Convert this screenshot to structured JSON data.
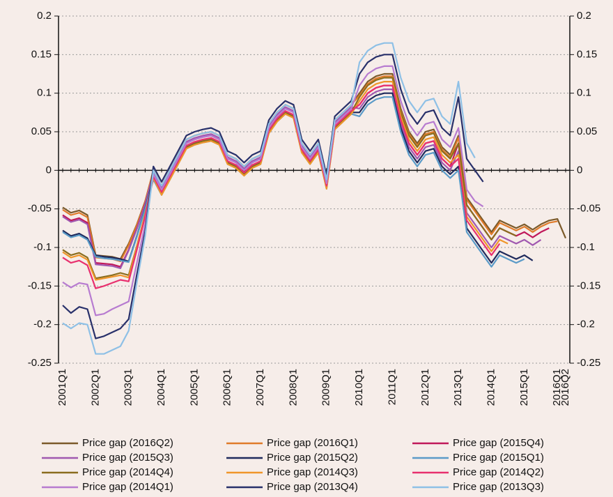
{
  "chart_data": {
    "type": "line",
    "categories": [
      "2001Q1",
      null,
      null,
      null,
      "2002Q1",
      null,
      null,
      null,
      "2003Q1",
      null,
      null,
      null,
      "2004Q1",
      null,
      null,
      null,
      "2005Q1",
      null,
      null,
      null,
      "2006Q1",
      null,
      null,
      null,
      "2007Q1",
      null,
      null,
      null,
      "2008Q1",
      null,
      null,
      null,
      "2009Q1",
      null,
      null,
      null,
      "2010Q1",
      null,
      null,
      null,
      "2011Q1",
      null,
      null,
      null,
      "2012Q1",
      null,
      null,
      null,
      "2013Q1",
      null,
      null,
      null,
      "2014Q1",
      null,
      null,
      null,
      "2015Q1",
      null,
      null,
      null,
      "2016Q1",
      "2016Q2"
    ],
    "ylim": [
      -0.25,
      0.2
    ],
    "yticks": [
      -0.25,
      -0.2,
      -0.15,
      -0.1,
      -0.05,
      0,
      0.05,
      0.1,
      0.15,
      0.2
    ],
    "y2lim": [
      -0.25,
      0.2
    ],
    "y2ticks": [
      -0.25,
      -0.2,
      -0.15,
      -0.1,
      -0.05,
      0,
      0.05,
      0.1,
      0.15,
      0.2
    ],
    "grid": true,
    "series": [
      {
        "name": "Price gap (2016Q2)",
        "color": "#7b5a2a",
        "values": [
          -0.048,
          -0.055,
          -0.052,
          -0.058,
          -0.11,
          -0.111,
          -0.112,
          -0.115,
          -0.095,
          -0.07,
          -0.04,
          0.0,
          -0.02,
          0.0,
          0.02,
          0.04,
          0.045,
          0.048,
          0.05,
          0.045,
          0.02,
          0.015,
          0.005,
          0.015,
          0.02,
          0.06,
          0.075,
          0.085,
          0.08,
          0.035,
          0.02,
          0.035,
          -0.012,
          0.065,
          0.075,
          0.085,
          0.1,
          0.115,
          0.122,
          0.125,
          0.125,
          0.08,
          0.05,
          0.035,
          0.05,
          0.053,
          0.03,
          0.02,
          0.045,
          -0.035,
          -0.05,
          -0.065,
          -0.08,
          -0.065,
          -0.07,
          -0.075,
          -0.07,
          -0.077,
          -0.07,
          -0.065,
          -0.063,
          -0.088
        ]
      },
      {
        "name": "Price gap (2016Q1)",
        "color": "#e07b2a",
        "values": [
          -0.051,
          -0.058,
          -0.055,
          -0.061,
          -0.113,
          -0.114,
          -0.115,
          -0.118,
          -0.097,
          -0.071,
          -0.041,
          0.0,
          -0.02,
          0.0,
          0.02,
          0.04,
          0.045,
          0.048,
          0.05,
          0.045,
          0.02,
          0.015,
          0.005,
          0.015,
          0.02,
          0.06,
          0.075,
          0.085,
          0.08,
          0.035,
          0.02,
          0.035,
          -0.012,
          0.065,
          0.075,
          0.085,
          0.097,
          0.112,
          0.119,
          0.122,
          0.122,
          0.077,
          0.047,
          0.032,
          0.047,
          0.05,
          0.027,
          0.017,
          0.042,
          -0.038,
          -0.053,
          -0.068,
          -0.083,
          -0.068,
          -0.073,
          -0.078,
          -0.073,
          -0.08,
          -0.073,
          -0.068,
          -0.066,
          null
        ]
      },
      {
        "name": "Price gap (2015Q4)",
        "color": "#c0185a",
        "values": [
          -0.058,
          -0.065,
          -0.062,
          -0.068,
          -0.12,
          -0.121,
          -0.122,
          -0.125,
          -0.103,
          -0.075,
          -0.043,
          -0.005,
          -0.025,
          -0.005,
          0.015,
          0.035,
          0.04,
          0.043,
          0.045,
          0.04,
          0.015,
          0.01,
          0.0,
          0.01,
          0.015,
          0.055,
          0.07,
          0.08,
          0.075,
          0.03,
          0.015,
          0.03,
          -0.017,
          0.06,
          0.07,
          0.08,
          0.085,
          0.1,
          0.107,
          0.11,
          0.11,
          0.065,
          0.035,
          0.02,
          0.035,
          0.038,
          0.015,
          0.005,
          0.035,
          -0.045,
          -0.06,
          -0.075,
          -0.09,
          -0.075,
          -0.08,
          -0.085,
          -0.08,
          -0.087,
          -0.08,
          -0.075,
          null,
          null
        ]
      },
      {
        "name": "Price gap (2015Q3)",
        "color": "#a058b0",
        "values": [
          -0.06,
          -0.067,
          -0.064,
          -0.07,
          -0.122,
          -0.123,
          -0.124,
          -0.127,
          -0.104,
          -0.076,
          -0.044,
          -0.003,
          -0.023,
          -0.003,
          0.017,
          0.037,
          0.042,
          0.045,
          0.047,
          0.042,
          0.017,
          0.012,
          0.002,
          0.012,
          0.017,
          0.057,
          0.072,
          0.082,
          0.077,
          0.032,
          0.017,
          0.032,
          -0.015,
          0.062,
          0.072,
          0.082,
          0.08,
          0.095,
          0.102,
          0.105,
          0.105,
          0.06,
          0.03,
          0.015,
          0.03,
          0.033,
          0.01,
          0.0,
          0.025,
          -0.055,
          -0.07,
          -0.085,
          -0.1,
          -0.085,
          -0.09,
          -0.095,
          -0.09,
          -0.097,
          -0.09,
          null,
          null,
          null
        ]
      },
      {
        "name": "Price gap (2015Q2)",
        "color": "#1f2a5c",
        "values": [
          -0.078,
          -0.085,
          -0.082,
          -0.088,
          -0.11,
          -0.112,
          -0.113,
          -0.115,
          -0.118,
          -0.085,
          -0.049,
          -0.01,
          -0.03,
          -0.01,
          0.01,
          0.03,
          0.035,
          0.038,
          0.04,
          0.035,
          0.01,
          0.005,
          -0.005,
          0.005,
          0.01,
          0.05,
          0.065,
          0.075,
          0.07,
          0.025,
          0.01,
          0.025,
          -0.022,
          0.055,
          0.065,
          0.075,
          0.075,
          0.09,
          0.097,
          0.1,
          0.1,
          0.055,
          0.025,
          0.01,
          0.025,
          0.028,
          0.005,
          -0.005,
          0.005,
          -0.075,
          -0.09,
          -0.105,
          -0.12,
          -0.105,
          -0.11,
          -0.115,
          -0.11,
          -0.117,
          null,
          null,
          null,
          null
        ]
      },
      {
        "name": "Price gap (2015Q1)",
        "color": "#5b9bc8",
        "values": [
          -0.08,
          -0.087,
          -0.084,
          -0.09,
          -0.112,
          -0.114,
          -0.115,
          -0.117,
          -0.119,
          -0.086,
          -0.05,
          -0.012,
          -0.032,
          -0.012,
          0.008,
          0.028,
          0.033,
          0.036,
          0.038,
          0.033,
          0.008,
          0.003,
          -0.007,
          0.003,
          0.008,
          0.048,
          0.063,
          0.073,
          0.068,
          0.023,
          0.008,
          0.023,
          -0.024,
          0.053,
          0.063,
          0.073,
          0.07,
          0.085,
          0.092,
          0.095,
          0.095,
          0.05,
          0.02,
          0.005,
          0.02,
          0.023,
          0.0,
          -0.01,
          0.0,
          -0.08,
          -0.095,
          -0.11,
          -0.125,
          -0.11,
          -0.115,
          -0.12,
          -0.115,
          null,
          null,
          null,
          null,
          null
        ]
      },
      {
        "name": "Price gap (2014Q4)",
        "color": "#8a6d1e",
        "values": [
          -0.103,
          -0.11,
          -0.107,
          -0.113,
          -0.14,
          -0.138,
          -0.136,
          -0.133,
          -0.136,
          -0.098,
          -0.057,
          -0.01,
          -0.03,
          -0.01,
          0.01,
          0.03,
          0.035,
          0.038,
          0.04,
          0.035,
          0.01,
          0.005,
          -0.005,
          0.005,
          0.01,
          0.05,
          0.065,
          0.075,
          0.07,
          0.025,
          0.01,
          0.025,
          -0.022,
          0.055,
          0.065,
          0.075,
          0.095,
          0.11,
          0.117,
          0.12,
          0.12,
          0.075,
          0.045,
          0.03,
          0.045,
          0.048,
          0.025,
          0.015,
          0.035,
          -0.045,
          -0.06,
          -0.075,
          -0.09,
          -0.075,
          -0.08,
          -0.085,
          null,
          null,
          null,
          null,
          null,
          null
        ]
      },
      {
        "name": "Price gap (2014Q3)",
        "color": "#f0962a",
        "values": [
          -0.106,
          -0.113,
          -0.11,
          -0.116,
          -0.142,
          -0.14,
          -0.138,
          -0.136,
          -0.139,
          -0.099,
          -0.057,
          -0.01,
          -0.032,
          -0.012,
          0.008,
          0.028,
          0.033,
          0.036,
          0.038,
          0.033,
          0.008,
          0.003,
          -0.007,
          0.003,
          0.008,
          0.048,
          0.063,
          0.073,
          0.068,
          0.023,
          0.008,
          0.023,
          -0.024,
          0.053,
          0.063,
          0.073,
          0.09,
          0.105,
          0.112,
          0.115,
          0.115,
          0.07,
          0.04,
          0.025,
          0.04,
          0.043,
          0.02,
          0.01,
          0.02,
          -0.06,
          -0.075,
          -0.09,
          -0.105,
          -0.09,
          -0.095,
          null,
          null,
          null,
          null,
          null,
          null,
          null
        ]
      },
      {
        "name": "Price gap (2014Q2)",
        "color": "#e8306e",
        "values": [
          -0.113,
          -0.12,
          -0.117,
          -0.123,
          -0.153,
          -0.15,
          -0.146,
          -0.142,
          -0.144,
          -0.103,
          -0.06,
          -0.008,
          -0.028,
          -0.008,
          0.012,
          0.032,
          0.037,
          0.04,
          0.042,
          0.037,
          0.012,
          0.007,
          -0.003,
          0.007,
          0.012,
          0.052,
          0.067,
          0.077,
          0.072,
          0.027,
          0.012,
          0.027,
          -0.02,
          0.057,
          0.067,
          0.077,
          0.085,
          0.1,
          0.107,
          0.11,
          0.11,
          0.065,
          0.035,
          0.02,
          0.035,
          0.038,
          0.015,
          0.005,
          0.015,
          -0.065,
          -0.08,
          -0.095,
          -0.11,
          -0.095,
          null,
          null,
          null,
          null,
          null,
          null,
          null,
          null
        ]
      },
      {
        "name": "Price gap (2014Q1)",
        "color": "#b77bd0",
        "values": [
          -0.145,
          -0.152,
          -0.146,
          -0.148,
          -0.188,
          -0.186,
          -0.18,
          -0.175,
          -0.17,
          -0.12,
          -0.07,
          -0.005,
          -0.025,
          -0.005,
          0.015,
          0.035,
          0.04,
          0.043,
          0.045,
          0.04,
          0.015,
          0.01,
          0.0,
          0.01,
          0.015,
          0.055,
          0.07,
          0.08,
          0.075,
          0.03,
          0.015,
          0.03,
          -0.017,
          0.06,
          0.07,
          0.08,
          0.11,
          0.125,
          0.132,
          0.135,
          0.135,
          0.09,
          0.06,
          0.045,
          0.06,
          0.063,
          0.04,
          0.03,
          0.055,
          -0.025,
          -0.04,
          -0.047,
          null,
          null,
          null,
          null,
          null,
          null,
          null,
          null,
          null,
          null
        ]
      },
      {
        "name": "Price gap (2013Q4)",
        "color": "#28306a",
        "values": [
          -0.175,
          -0.185,
          -0.177,
          -0.18,
          -0.218,
          -0.215,
          -0.21,
          -0.205,
          -0.193,
          -0.135,
          -0.079,
          0.005,
          -0.015,
          0.005,
          0.025,
          0.045,
          0.05,
          0.053,
          0.055,
          0.05,
          0.025,
          0.02,
          0.01,
          0.02,
          0.025,
          0.065,
          0.08,
          0.09,
          0.085,
          0.04,
          0.025,
          0.04,
          -0.007,
          0.07,
          0.08,
          0.09,
          0.125,
          0.14,
          0.147,
          0.15,
          0.15,
          0.105,
          0.075,
          0.06,
          0.075,
          0.078,
          0.055,
          0.045,
          0.095,
          0.015,
          0.0,
          -0.015,
          null,
          null,
          null,
          null,
          null,
          null,
          null,
          null,
          null,
          null
        ]
      },
      {
        "name": "Price gap (2013Q3)",
        "color": "#8ec0e6",
        "values": [
          -0.198,
          -0.205,
          -0.198,
          -0.2,
          -0.238,
          -0.238,
          -0.233,
          -0.228,
          -0.208,
          -0.145,
          -0.085,
          0.0,
          -0.02,
          0.0,
          0.02,
          0.04,
          0.045,
          0.048,
          0.05,
          0.045,
          0.02,
          0.015,
          0.005,
          0.015,
          0.02,
          0.06,
          0.075,
          0.085,
          0.08,
          0.035,
          0.02,
          0.035,
          -0.012,
          0.065,
          0.075,
          0.085,
          0.14,
          0.155,
          0.162,
          0.165,
          0.165,
          0.12,
          0.09,
          0.075,
          0.09,
          0.093,
          0.07,
          0.06,
          0.115,
          0.035,
          0.016,
          null,
          null,
          null,
          null,
          null,
          null,
          null,
          null,
          null,
          null,
          null
        ]
      }
    ]
  }
}
